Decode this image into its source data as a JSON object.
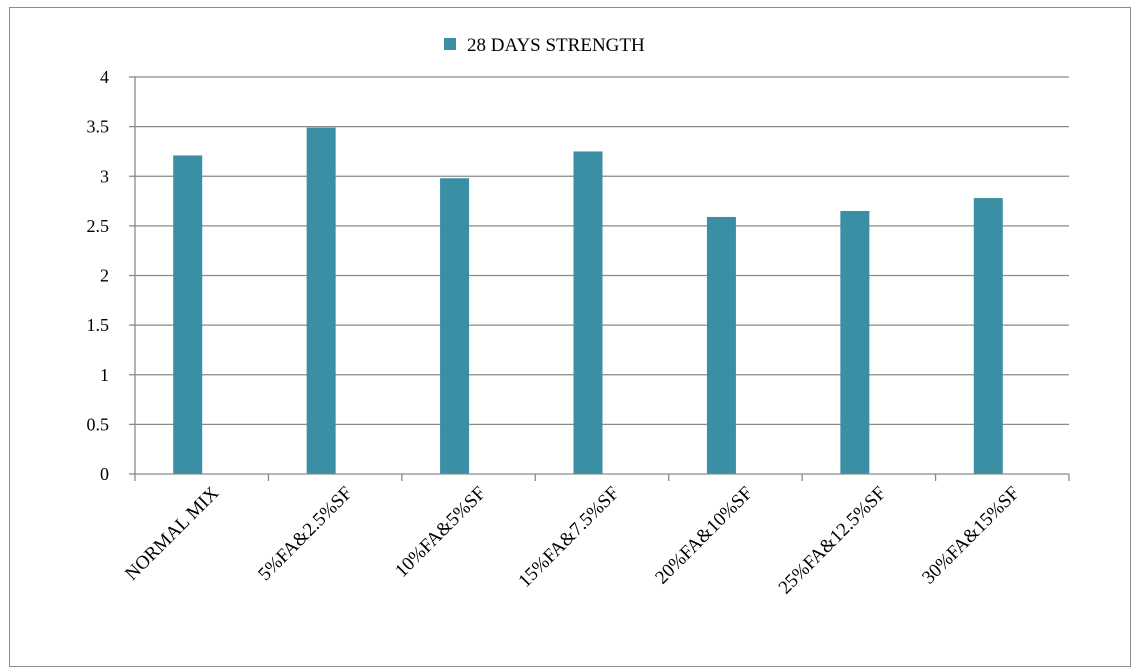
{
  "chart_data": {
    "type": "bar",
    "categories": [
      "NORMAL MIX",
      "5%FA&2.5%SF",
      "10%FA&5%SF",
      "15%FA&7.5%SF",
      "20%FA&10%SF",
      "25%FA&12.5%SF",
      "30%FA&15%SF"
    ],
    "series": [
      {
        "name": "28 DAYS STRENGTH",
        "values": [
          3.21,
          3.49,
          2.98,
          3.25,
          2.59,
          2.65,
          2.78
        ],
        "color": "#3a8fa5"
      }
    ],
    "ylim": [
      0,
      4
    ],
    "yticks": [
      "0",
      "0.5",
      "1",
      "1.5",
      "2",
      "2.5",
      "3",
      "3.5",
      "4"
    ],
    "grid": true,
    "legend_position": "top-center",
    "colors": {
      "gridline": "#8a8a8a",
      "axis": "#8a8a8a",
      "bar": "#3a8fa5"
    }
  }
}
